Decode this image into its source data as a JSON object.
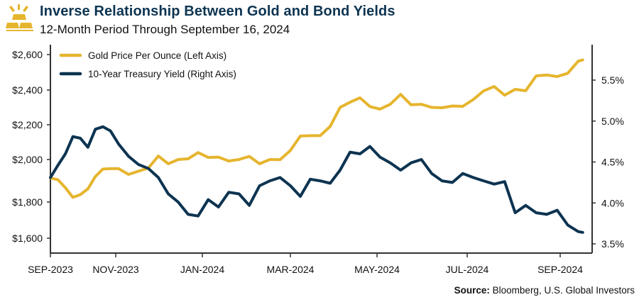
{
  "header": {
    "title": "Inverse Relationship Between Gold and Bond Yields",
    "subtitle": "12-Month Period Through September 16, 2024",
    "logo_icon": "gold-bars-icon"
  },
  "source": {
    "label": "Source:",
    "text": " Bloomberg, U.S. Global Investors"
  },
  "colors": {
    "gold": "#e6b52e",
    "navy": "#0d3451",
    "axis": "#333333"
  },
  "chart_data": {
    "type": "line",
    "title": "Inverse Relationship Between Gold and Bond Yields",
    "subtitle": "12-Month Period Through September 16, 2024",
    "grid": false,
    "legend_placement": "top-left",
    "x_ticks": [
      {
        "date": "2023-09-01",
        "label": "SEP-2023"
      },
      {
        "date": "2023-11-01",
        "label": "NOV-2023"
      },
      {
        "date": "2024-01-01",
        "label": "JAN-2024"
      },
      {
        "date": "2024-03-01",
        "label": "MAR-2024"
      },
      {
        "date": "2024-05-01",
        "label": "MAY-2024"
      },
      {
        "date": "2024-07-01",
        "label": "JUL-2024"
      },
      {
        "date": "2024-09-01",
        "label": "SEP-2024"
      }
    ],
    "left_axis": {
      "ticks": [
        1600,
        1800,
        2000,
        2200,
        2400,
        2600
      ],
      "tick_labels": [
        "$1,600",
        "$1,800",
        "$2,000",
        "$2,200",
        "$2,400",
        "$2,600"
      ]
    },
    "right_axis": {
      "ylim": [
        3.5,
        5.75
      ],
      "ticks": [
        3.5,
        4.0,
        4.5,
        5.0,
        5.5
      ],
      "tick_labels": [
        "3.5%",
        "4.0%",
        "4.5%",
        "5.0%",
        "5.5%"
      ]
    },
    "x": [
      "2023-09-01",
      "2023-09-08",
      "2023-09-15",
      "2023-09-22",
      "2023-09-29",
      "2023-10-06",
      "2023-10-13",
      "2023-10-20",
      "2023-10-27",
      "2023-11-03",
      "2023-11-10",
      "2023-11-17",
      "2023-11-24",
      "2023-12-01",
      "2023-12-08",
      "2023-12-15",
      "2023-12-22",
      "2023-12-29",
      "2024-01-05",
      "2024-01-12",
      "2024-01-19",
      "2024-01-26",
      "2024-02-02",
      "2024-02-09",
      "2024-02-16",
      "2024-02-23",
      "2024-03-01",
      "2024-03-08",
      "2024-03-15",
      "2024-03-22",
      "2024-03-29",
      "2024-04-05",
      "2024-04-12",
      "2024-04-19",
      "2024-04-26",
      "2024-05-03",
      "2024-05-10",
      "2024-05-17",
      "2024-05-24",
      "2024-05-31",
      "2024-06-07",
      "2024-06-14",
      "2024-06-21",
      "2024-06-28",
      "2024-07-05",
      "2024-07-12",
      "2024-07-19",
      "2024-07-26",
      "2024-08-02",
      "2024-08-09",
      "2024-08-16",
      "2024-08-23",
      "2024-08-30",
      "2024-09-06",
      "2024-09-13",
      "2024-09-16"
    ],
    "series": [
      {
        "name": "Gold Price Per Ounce (Left Axis)",
        "axis": "left",
        "color": "#e6b52e",
        "values": [
          1913,
          1905,
          1867,
          1822,
          1835,
          1862,
          1920,
          1955,
          1957,
          1957,
          1930,
          1945,
          1960,
          2020,
          1980,
          2000,
          2004,
          2040,
          2012,
          2014,
          1993,
          2000,
          2018,
          1980,
          2000,
          1999,
          2052,
          2135,
          2137,
          2137,
          2190,
          2300,
          2330,
          2355,
          2305,
          2290,
          2318,
          2375,
          2315,
          2318,
          2300,
          2298,
          2308,
          2306,
          2345,
          2395,
          2420,
          2370,
          2404,
          2396,
          2480,
          2485,
          2476,
          2495,
          2563,
          2570
        ]
      },
      {
        "name": "10-Year Treasury Yield (Right Axis)",
        "axis": "right",
        "color": "#0d3451",
        "values": [
          4.31,
          4.46,
          4.6,
          4.81,
          4.79,
          4.68,
          4.9,
          4.93,
          4.88,
          4.72,
          4.57,
          4.47,
          4.42,
          4.31,
          4.11,
          4.01,
          3.86,
          3.84,
          4.04,
          3.95,
          4.13,
          4.11,
          3.97,
          4.21,
          4.27,
          4.31,
          4.21,
          4.08,
          4.29,
          4.27,
          4.24,
          4.4,
          4.62,
          4.6,
          4.69,
          4.56,
          4.49,
          4.4,
          4.49,
          4.53,
          4.36,
          4.27,
          4.25,
          4.36,
          4.31,
          4.27,
          4.23,
          4.26,
          3.88,
          3.97,
          3.88,
          3.86,
          3.91,
          3.73,
          3.65,
          3.64
        ]
      }
    ]
  }
}
